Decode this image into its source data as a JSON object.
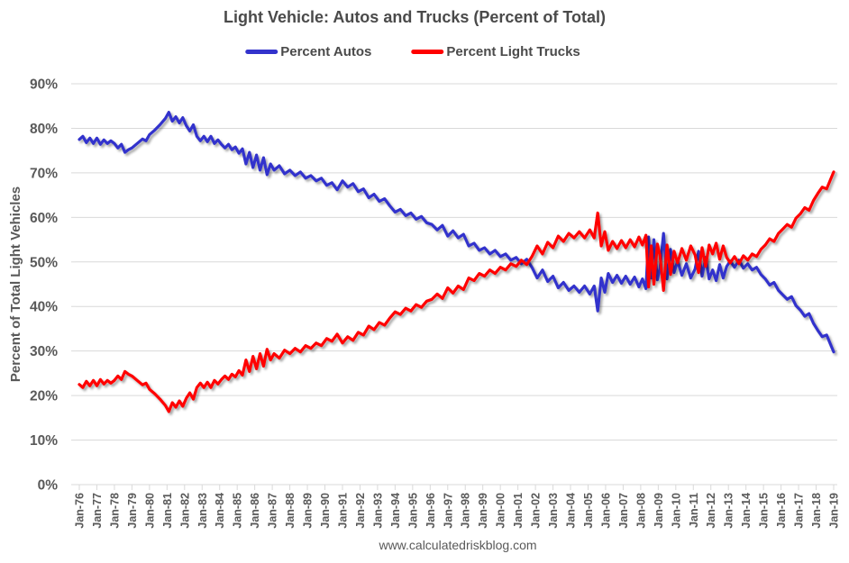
{
  "title": "Light Vehicle: Autos and Trucks (Percent of Total)",
  "footer": "www.calculatedriskblog.com",
  "legend": [
    {
      "label": "Percent Autos",
      "color": "#3333CC"
    },
    {
      "label": "Percent Light Trucks",
      "color": "#FF0000"
    }
  ],
  "colors": {
    "title_text": "#4A4A4A",
    "axis_text": "#595959",
    "grid_line": "#D9D9D9",
    "background": "#FFFFFF",
    "autos_line": "#3333CC",
    "trucks_line": "#FF0000"
  },
  "chart_data": {
    "type": "line",
    "title": "Light Vehicle: Autos and Trucks (Percent of Total)",
    "xlabel": "",
    "ylabel": "Percent of Total Light Vehicles",
    "xlim": [
      1976,
      2019
    ],
    "ylim": [
      0,
      90
    ],
    "grid": true,
    "legend_position": "top",
    "ytick_labels": [
      "0%",
      "10%",
      "20%",
      "30%",
      "40%",
      "50%",
      "60%",
      "70%",
      "80%",
      "90%"
    ],
    "xtick_labels": [
      "Jan-76",
      "Jan-77",
      "Jan-78",
      "Jan-79",
      "Jan-80",
      "Jan-81",
      "Jan-82",
      "Jan-83",
      "Jan-84",
      "Jan-85",
      "Jan-86",
      "Jan-87",
      "Jan-88",
      "Jan-89",
      "Jan-90",
      "Jan-91",
      "Jan-92",
      "Jan-93",
      "Jan-94",
      "Jan-95",
      "Jan-96",
      "Jan-97",
      "Jan-98",
      "Jan-99",
      "Jan-00",
      "Jan-01",
      "Jan-02",
      "Jan-03",
      "Jan-04",
      "Jan-05",
      "Jan-06",
      "Jan-07",
      "Jan-08",
      "Jan-09",
      "Jan-10",
      "Jan-11",
      "Jan-12",
      "Jan-13",
      "Jan-14",
      "Jan-15",
      "Jan-16",
      "Jan-17",
      "Jan-18",
      "Jan-19"
    ],
    "x": [
      1976.0,
      1976.2,
      1976.4,
      1976.6,
      1976.8,
      1977.0,
      1977.2,
      1977.4,
      1977.6,
      1977.8,
      1978.0,
      1978.2,
      1978.4,
      1978.6,
      1978.8,
      1979.0,
      1979.3,
      1979.6,
      1979.8,
      1980.0,
      1980.3,
      1980.6,
      1980.9,
      1981.1,
      1981.3,
      1981.5,
      1981.7,
      1981.9,
      1982.1,
      1982.3,
      1982.5,
      1982.7,
      1982.9,
      1983.1,
      1983.3,
      1983.5,
      1983.7,
      1983.9,
      1984.1,
      1984.3,
      1984.5,
      1984.7,
      1984.9,
      1985.1,
      1985.3,
      1985.5,
      1985.7,
      1985.9,
      1986.1,
      1986.3,
      1986.5,
      1986.7,
      1986.9,
      1987.1,
      1987.4,
      1987.7,
      1988.0,
      1988.3,
      1988.6,
      1988.9,
      1989.2,
      1989.5,
      1989.8,
      1990.1,
      1990.4,
      1990.7,
      1991.0,
      1991.3,
      1991.6,
      1991.9,
      1992.2,
      1992.5,
      1992.8,
      1993.1,
      1993.4,
      1993.7,
      1994.0,
      1994.3,
      1994.6,
      1994.9,
      1995.2,
      1995.5,
      1995.8,
      1996.1,
      1996.4,
      1996.7,
      1997.0,
      1997.3,
      1997.6,
      1997.9,
      1998.2,
      1998.5,
      1998.8,
      1999.1,
      1999.4,
      1999.7,
      2000.0,
      2000.3,
      2000.6,
      2000.9,
      2001.2,
      2001.5,
      2001.8,
      2002.1,
      2002.4,
      2002.7,
      2003.0,
      2003.3,
      2003.6,
      2003.9,
      2004.2,
      2004.5,
      2004.8,
      2005.1,
      2005.35,
      2005.55,
      2005.75,
      2005.95,
      2006.15,
      2006.4,
      2006.65,
      2006.9,
      2007.15,
      2007.4,
      2007.65,
      2007.9,
      2008.1,
      2008.3,
      2008.45,
      2008.6,
      2008.75,
      2008.95,
      2009.1,
      2009.3,
      2009.5,
      2009.7,
      2009.9,
      2010.1,
      2010.35,
      2010.6,
      2010.85,
      2011.1,
      2011.3,
      2011.5,
      2011.7,
      2011.9,
      2012.1,
      2012.3,
      2012.5,
      2012.7,
      2012.9,
      2013.1,
      2013.35,
      2013.6,
      2013.85,
      2014.1,
      2014.35,
      2014.6,
      2014.85,
      2015.1,
      2015.35,
      2015.6,
      2015.85,
      2016.1,
      2016.35,
      2016.6,
      2016.85,
      2017.1,
      2017.35,
      2017.6,
      2017.85,
      2018.1,
      2018.35,
      2018.6,
      2018.85,
      2019.0
    ],
    "series": [
      {
        "name": "Percent Autos",
        "color": "#3333CC",
        "values": [
          77.5,
          78.2,
          76.8,
          77.8,
          76.6,
          77.8,
          76.4,
          77.4,
          76.6,
          77.2,
          76.6,
          75.6,
          76.4,
          74.6,
          75.2,
          75.6,
          76.6,
          77.6,
          77.2,
          78.6,
          79.6,
          80.8,
          82.2,
          83.6,
          81.6,
          82.6,
          81.2,
          82.4,
          80.6,
          79.4,
          80.8,
          78.2,
          77.2,
          78.2,
          77.0,
          78.2,
          76.6,
          77.4,
          76.4,
          75.6,
          76.4,
          75.2,
          75.8,
          74.4,
          75.4,
          72.0,
          74.6,
          71.2,
          74.0,
          70.6,
          73.4,
          69.6,
          72.0,
          70.6,
          71.6,
          69.8,
          70.6,
          69.4,
          70.2,
          68.8,
          69.4,
          68.2,
          68.8,
          67.2,
          67.8,
          66.2,
          68.2,
          66.8,
          67.6,
          65.8,
          66.4,
          64.4,
          65.2,
          63.6,
          64.2,
          62.6,
          61.2,
          61.8,
          60.4,
          61.0,
          59.6,
          60.2,
          58.8,
          58.4,
          57.2,
          58.2,
          55.8,
          57.0,
          55.4,
          56.2,
          53.6,
          54.2,
          52.6,
          53.2,
          51.8,
          52.6,
          51.2,
          51.8,
          50.4,
          51.0,
          49.6,
          50.6,
          48.8,
          46.4,
          48.2,
          45.6,
          46.8,
          44.2,
          45.4,
          43.6,
          44.6,
          43.2,
          44.6,
          42.8,
          44.6,
          39.0,
          46.4,
          43.2,
          47.4,
          45.4,
          47.0,
          45.2,
          46.8,
          45.0,
          46.6,
          44.4,
          46.2,
          44.0,
          55.6,
          46.4,
          55.0,
          46.0,
          48.6,
          56.4,
          46.2,
          52.8,
          47.6,
          50.2,
          47.0,
          49.6,
          46.4,
          48.4,
          52.4,
          46.8,
          51.0,
          46.2,
          48.2,
          45.8,
          49.4,
          46.4,
          49.0,
          50.2,
          48.8,
          50.4,
          48.6,
          49.6,
          48.2,
          48.8,
          47.2,
          46.2,
          44.8,
          45.4,
          43.6,
          42.6,
          41.6,
          42.2,
          40.2,
          39.2,
          37.8,
          38.4,
          36.2,
          34.6,
          33.2,
          33.6,
          31.2,
          29.8
        ]
      },
      {
        "name": "Percent Light Trucks",
        "color": "#FF0000",
        "values": [
          22.5,
          21.8,
          23.2,
          22.2,
          23.4,
          22.2,
          23.6,
          22.6,
          23.4,
          22.8,
          23.4,
          24.4,
          23.6,
          25.4,
          24.8,
          24.4,
          23.4,
          22.4,
          22.8,
          21.4,
          20.4,
          19.2,
          17.8,
          16.4,
          18.4,
          17.4,
          18.8,
          17.6,
          19.4,
          20.6,
          19.2,
          21.8,
          22.8,
          21.8,
          23.0,
          21.8,
          23.4,
          22.6,
          23.6,
          24.4,
          23.6,
          24.8,
          24.2,
          25.6,
          24.6,
          28.0,
          25.4,
          28.8,
          26.0,
          29.4,
          26.6,
          30.4,
          28.0,
          29.4,
          28.4,
          30.2,
          29.4,
          30.6,
          29.8,
          31.2,
          30.6,
          31.8,
          31.2,
          32.8,
          32.2,
          33.8,
          31.8,
          33.2,
          32.4,
          34.2,
          33.6,
          35.6,
          34.8,
          36.4,
          35.8,
          37.4,
          38.8,
          38.2,
          39.6,
          39.0,
          40.4,
          39.8,
          41.2,
          41.6,
          42.8,
          41.8,
          44.2,
          43.0,
          44.6,
          43.8,
          46.4,
          45.8,
          47.4,
          46.8,
          48.2,
          47.4,
          48.8,
          48.2,
          49.6,
          49.0,
          50.4,
          49.4,
          51.2,
          53.6,
          51.8,
          54.4,
          53.2,
          55.8,
          54.6,
          56.4,
          55.4,
          56.8,
          55.4,
          57.2,
          55.4,
          61.0,
          53.6,
          56.8,
          52.6,
          54.6,
          53.0,
          54.8,
          53.2,
          55.0,
          53.4,
          55.6,
          53.8,
          56.0,
          44.4,
          53.6,
          45.0,
          54.0,
          51.4,
          43.6,
          53.8,
          47.2,
          52.4,
          49.8,
          53.0,
          50.4,
          53.6,
          51.6,
          47.6,
          53.2,
          49.0,
          53.8,
          51.8,
          54.2,
          50.6,
          53.6,
          51.0,
          49.8,
          51.2,
          49.6,
          51.4,
          50.4,
          51.8,
          51.2,
          52.8,
          53.8,
          55.2,
          54.6,
          56.4,
          57.4,
          58.4,
          57.8,
          59.8,
          60.8,
          62.2,
          61.6,
          63.8,
          65.4,
          66.8,
          66.4,
          68.8,
          70.2
        ]
      }
    ]
  }
}
